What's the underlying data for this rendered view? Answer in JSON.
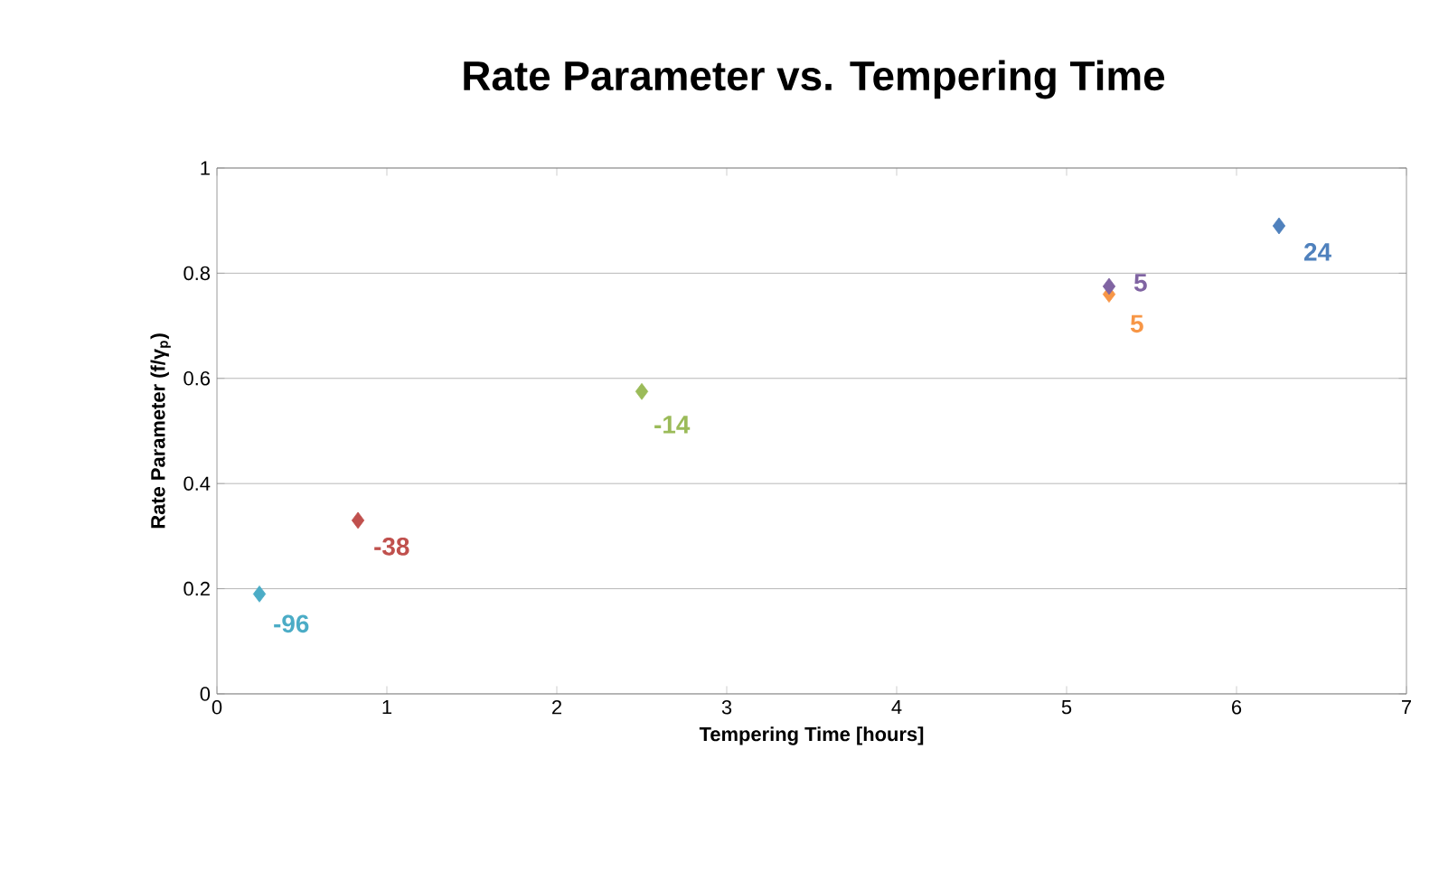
{
  "chart_data": {
    "type": "scatter",
    "title": "Rate Parameter vs. Tempering Time",
    "xlabel": "Tempering Time [hours]",
    "ylabel": "Rate Parameter (f/γ$_{p}$)",
    "xlim": [
      0,
      7
    ],
    "ylim": [
      0,
      1
    ],
    "xticks": [
      0,
      1,
      2,
      3,
      4,
      5,
      6,
      7
    ],
    "yticks": [
      0,
      0.2,
      0.4,
      0.6,
      0.8,
      1
    ],
    "grid": "y",
    "marker": "diamond",
    "series": [
      {
        "name": "-96",
        "color": "#4bacc6",
        "x": [
          0.25
        ],
        "values": [
          0.19
        ]
      },
      {
        "name": "-38",
        "color": "#c0504d",
        "x": [
          0.83
        ],
        "values": [
          0.33
        ]
      },
      {
        "name": "-14",
        "color": "#9bbb59",
        "x": [
          2.5
        ],
        "values": [
          0.575
        ]
      },
      {
        "name": "5",
        "color": "#f79646",
        "x": [
          5.25
        ],
        "values": [
          0.76
        ]
      },
      {
        "name": "5",
        "color": "#8064a2",
        "x": [
          5.25
        ],
        "values": [
          0.775
        ]
      },
      {
        "name": "24",
        "color": "#4f81bd",
        "x": [
          6.25
        ],
        "values": [
          0.89
        ]
      }
    ]
  }
}
